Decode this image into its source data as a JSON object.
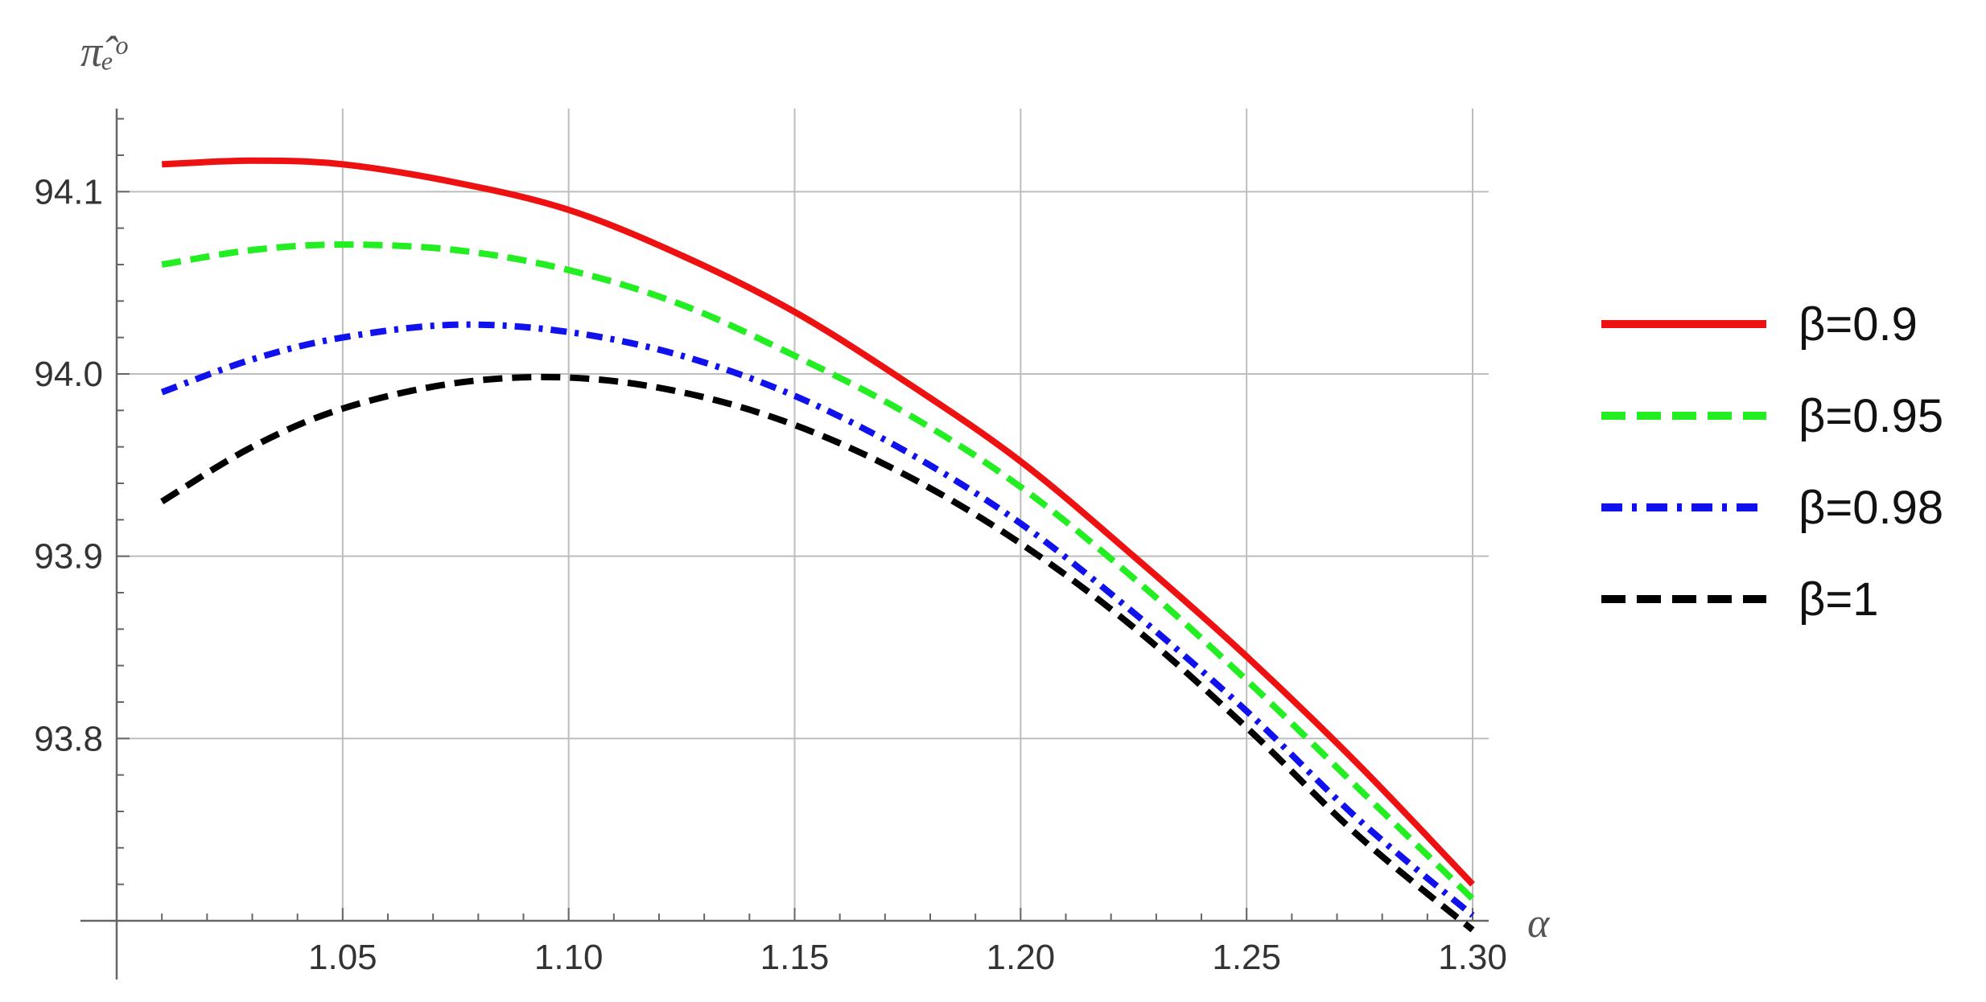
{
  "chart_data": {
    "type": "line",
    "ylabel": "π̂ₑᵒ",
    "xlabel": "α",
    "xlim": [
      1.0,
      1.3
    ],
    "ylim": [
      93.7,
      94.15
    ],
    "x_ticks": [
      1.05,
      1.1,
      1.15,
      1.2,
      1.25,
      1.3
    ],
    "x_tick_labels": [
      "1.05",
      "1.10",
      "1.15",
      "1.20",
      "1.25",
      "1.30"
    ],
    "y_ticks": [
      93.8,
      93.9,
      94.0,
      94.1
    ],
    "y_tick_labels": [
      "93.8",
      "93.9",
      "94.0",
      "94.1"
    ],
    "grid": true,
    "legend_position": "right",
    "series": [
      {
        "name": "β=0.9",
        "color": "#ee1111",
        "style": "solid",
        "x": [
          1.01,
          1.03,
          1.05,
          1.075,
          1.1,
          1.125,
          1.15,
          1.175,
          1.2,
          1.225,
          1.25,
          1.275,
          1.3
        ],
        "values": [
          94.115,
          94.117,
          94.115,
          94.105,
          94.09,
          94.065,
          94.034,
          93.995,
          93.952,
          93.9,
          93.845,
          93.785,
          93.72
        ]
      },
      {
        "name": "β=0.95",
        "color": "#22ee22",
        "style": "dashed",
        "x": [
          1.01,
          1.03,
          1.05,
          1.075,
          1.1,
          1.125,
          1.15,
          1.175,
          1.2,
          1.225,
          1.25,
          1.275,
          1.3
        ],
        "values": [
          94.06,
          94.068,
          94.071,
          94.068,
          94.057,
          94.038,
          94.01,
          93.978,
          93.938,
          93.888,
          93.832,
          93.772,
          93.712
        ]
      },
      {
        "name": "β=0.98",
        "color": "#1111ee",
        "style": "dashdot",
        "x": [
          1.01,
          1.03,
          1.05,
          1.075,
          1.1,
          1.125,
          1.15,
          1.175,
          1.2,
          1.225,
          1.25,
          1.275,
          1.3
        ],
        "values": [
          93.99,
          94.008,
          94.02,
          94.027,
          94.023,
          94.01,
          93.988,
          93.957,
          93.918,
          93.869,
          93.815,
          93.755,
          93.703
        ]
      },
      {
        "name": "β=1",
        "color": "#000000",
        "style": "dashed",
        "x": [
          1.01,
          1.03,
          1.05,
          1.075,
          1.1,
          1.125,
          1.15,
          1.175,
          1.2,
          1.225,
          1.25,
          1.275,
          1.3
        ],
        "values": [
          93.93,
          93.96,
          93.981,
          93.995,
          93.998,
          93.99,
          93.972,
          93.944,
          93.907,
          93.861,
          93.806,
          93.746,
          93.695
        ]
      }
    ]
  }
}
